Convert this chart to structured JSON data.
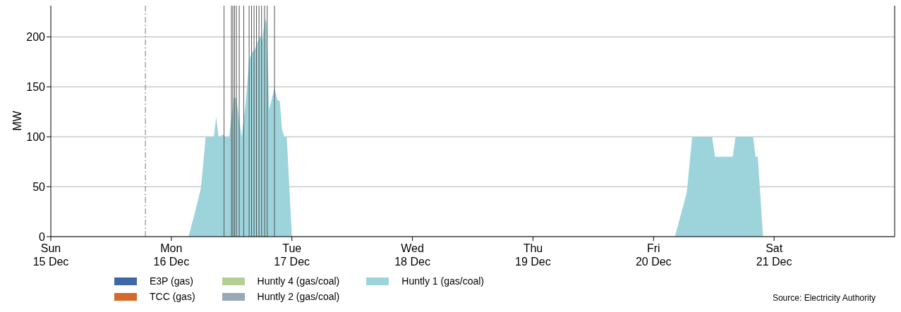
{
  "chart_data": {
    "type": "area",
    "ylabel": "MW",
    "x": [
      "--12-15T00:00",
      "--12-16T03:25",
      "--12-16T04:44",
      "--12-16T05:54",
      "--12-16T06:50",
      "--12-16T08:28",
      "--12-16T08:56",
      "--12-16T09:24",
      "--12-16T10:21",
      "--12-16T10:48",
      "--12-16T11:30",
      "--12-16T12:27",
      "--12-16T12:55",
      "--12-16T13:59",
      "--12-16T14:47",
      "--12-16T15:29",
      "--12-16T15:58",
      "--12-16T16:40",
      "--12-16T17:35",
      "--12-16T18:04",
      "--12-16T18:40",
      "--12-16T18:59",
      "--12-16T19:28",
      "--12-16T20:32",
      "--12-16T21:06",
      "--12-16T21:35",
      "--12-16T22:02",
      "--12-16T22:30",
      "--12-16T22:58",
      "--12-17T00:00",
      "--12-20T04:15",
      "--12-20T05:06",
      "--12-20T06:30",
      "--12-20T06:44",
      "--12-20T07:41",
      "--12-20T11:39",
      "--12-20T12:15",
      "--12-20T15:46",
      "--12-20T16:19",
      "--12-20T19:50",
      "--12-20T20:18",
      "--12-20T20:46",
      "--12-20T21:48",
      "--12-22T00:00"
    ],
    "series": [
      {
        "name": "E3P (gas)",
        "color": "#3f68a6",
        "values": [
          null,
          null,
          null,
          null,
          null,
          null,
          null,
          null,
          null,
          null,
          null,
          null,
          null,
          null,
          null,
          null,
          null,
          null,
          null,
          null,
          null,
          null,
          null,
          null,
          null,
          null,
          null,
          null,
          null,
          null,
          null,
          null,
          null,
          null,
          null,
          null,
          null,
          null,
          null,
          null,
          null,
          null,
          null,
          null
        ]
      },
      {
        "name": "TCC (gas)",
        "color": "#d4692a",
        "values": [
          null,
          null,
          null,
          null,
          null,
          null,
          null,
          null,
          null,
          null,
          null,
          null,
          null,
          null,
          null,
          null,
          null,
          null,
          null,
          null,
          null,
          null,
          null,
          null,
          null,
          null,
          null,
          null,
          null,
          null,
          null,
          null,
          null,
          null,
          null,
          null,
          null,
          null,
          null,
          null,
          null,
          null,
          null,
          null
        ]
      },
      {
        "name": "Huntly 4 (gas/coal)",
        "color": "#b3cf95",
        "values": [
          null,
          null,
          null,
          null,
          null,
          null,
          null,
          null,
          null,
          null,
          null,
          null,
          null,
          null,
          null,
          null,
          null,
          null,
          null,
          null,
          null,
          null,
          null,
          null,
          null,
          null,
          null,
          null,
          null,
          null,
          null,
          null,
          null,
          null,
          null,
          null,
          null,
          null,
          null,
          null,
          null,
          null,
          null,
          null
        ]
      },
      {
        "name": "Huntly 2 (gas/coal)",
        "color": "#98a8b6",
        "values": [
          null,
          null,
          null,
          null,
          null,
          null,
          null,
          null,
          null,
          null,
          null,
          null,
          null,
          null,
          null,
          null,
          null,
          null,
          null,
          null,
          null,
          null,
          null,
          null,
          null,
          null,
          null,
          null,
          null,
          null,
          null,
          null,
          null,
          null,
          null,
          null,
          null,
          null,
          null,
          null,
          null,
          null,
          null,
          null
        ]
      },
      {
        "name": "Huntly 1 (gas/coal)",
        "color": "#9dd4dc",
        "values": [
          0,
          0,
          25,
          49,
          100,
          100,
          120,
          100,
          102,
          100,
          100,
          139,
          139,
          100,
          133,
          176,
          184,
          188,
          201,
          197,
          219,
          213,
          127,
          149,
          137,
          136,
          107,
          100,
          100,
          0,
          0,
          16,
          42,
          50,
          100,
          100,
          80,
          80,
          100,
          100,
          80,
          80,
          0,
          0
        ]
      }
    ],
    "xlim": [
      "--12-15T00:00",
      "--12-22T00:00"
    ],
    "xticks": [
      {
        "value": "--12-15T00:00",
        "label": "Sun\n15 Dec"
      },
      {
        "value": "--12-16T00:00",
        "label": "Mon\n16 Dec"
      },
      {
        "value": "--12-17T00:00",
        "label": "Tue\n17 Dec"
      },
      {
        "value": "--12-18T00:00",
        "label": "Wed\n18 Dec"
      },
      {
        "value": "--12-19T00:00",
        "label": "Thu\n19 Dec"
      },
      {
        "value": "--12-20T00:00",
        "label": "Fri\n20 Dec"
      },
      {
        "value": "--12-21T00:00",
        "label": "Sat\n21 Dec"
      }
    ],
    "ylim": [
      0,
      232
    ],
    "yticks": [
      0,
      50,
      100,
      150,
      200
    ],
    "grid": "y",
    "legend": "bottom",
    "ref_lines": [
      {
        "axis": "x",
        "value": "--12-15T18:50",
        "color": "#777777",
        "line_style": "dashed"
      },
      {
        "axis": "x",
        "value": "--12-16T10:29",
        "color": "#555555",
        "line_style": "solid"
      },
      {
        "axis": "x",
        "value": "--12-16T11:58",
        "color": "#555555",
        "line_style": "solid"
      },
      {
        "axis": "x",
        "value": "--12-16T12:15",
        "color": "#555555",
        "line_style": "solid"
      },
      {
        "axis": "x",
        "value": "--12-16T12:35",
        "color": "#555555",
        "line_style": "solid"
      },
      {
        "axis": "x",
        "value": "--12-16T12:57",
        "color": "#555555",
        "line_style": "solid"
      },
      {
        "axis": "x",
        "value": "--12-16T13:31",
        "color": "#555555",
        "line_style": "solid"
      },
      {
        "axis": "x",
        "value": "--12-16T14:25",
        "color": "#555555",
        "line_style": "solid"
      },
      {
        "axis": "x",
        "value": "--12-16T15:29",
        "color": "#555555",
        "line_style": "solid"
      },
      {
        "axis": "x",
        "value": "--12-16T15:58",
        "color": "#555555",
        "line_style": "solid"
      },
      {
        "axis": "x",
        "value": "--12-16T16:28",
        "color": "#555555",
        "line_style": "solid"
      },
      {
        "axis": "x",
        "value": "--12-16T16:57",
        "color": "#555555",
        "line_style": "solid"
      },
      {
        "axis": "x",
        "value": "--12-16T17:27",
        "color": "#555555",
        "line_style": "solid"
      },
      {
        "axis": "x",
        "value": "--12-16T17:58",
        "color": "#555555",
        "line_style": "solid"
      },
      {
        "axis": "x",
        "value": "--12-16T18:34",
        "color": "#555555",
        "line_style": "solid"
      },
      {
        "axis": "x",
        "value": "--12-16T19:05",
        "color": "#555555",
        "line_style": "solid"
      },
      {
        "axis": "x",
        "value": "--12-16T20:32",
        "color": "#555555",
        "line_style": "solid"
      }
    ],
    "annotations": [
      "Source: Electricity Authority"
    ]
  }
}
